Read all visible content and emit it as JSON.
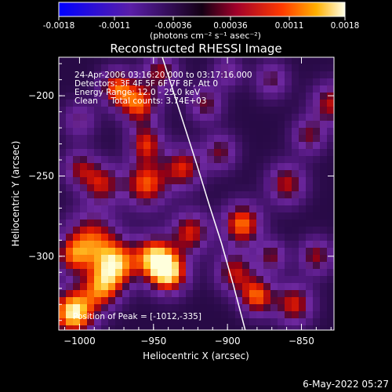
{
  "colorbar": {
    "tick_labels": [
      "-0.0018",
      "-0.0011",
      "-0.00036",
      "0.00036",
      "0.0011",
      "0.0018"
    ],
    "unit_label": "(photons cm⁻² s⁻¹ asec⁻²)",
    "range": [
      -0.0018,
      0.0018
    ]
  },
  "header": {
    "line1": "24-Apr-2006 03:16:20.000 to 03:17:16.000",
    "line2": "Detectors: 3F 4F 5F 6F 7F 8F, Att 0",
    "line3": "Energy Range: 12.0 - 25.0 keV",
    "line4": "Clean     Total counts: 3.74E+03"
  },
  "footer": {
    "peak_text": "Position of Peak = [-1012,-335]",
    "date_stamp": "6-May-2022 05:27"
  },
  "chart_data": {
    "type": "heatmap",
    "title": "Reconstructed RHESSI Image",
    "xlabel": "Heliocentric X (arcsec)",
    "ylabel": "Heliocentric Y (arcsec)",
    "xlim": [
      -1014,
      -828
    ],
    "ylim": [
      -346,
      -176
    ],
    "xticks": [
      -1000,
      -950,
      -900,
      -850
    ],
    "yticks": [
      -200,
      -250,
      -300
    ],
    "xtick_labels": [
      "−1000",
      "−950",
      "−900",
      "−850"
    ],
    "ytick_labels": [
      "−200",
      "−250",
      "−300"
    ],
    "limb_curve": {
      "x": [
        -944,
        -936,
        -928,
        -920,
        -912,
        -904,
        -896,
        -888
      ],
      "y": [
        -176,
        -199,
        -222,
        -245,
        -269,
        -292,
        -318,
        -346
      ]
    },
    "peak": {
      "x": -1012,
      "y": -335
    },
    "blobs": [
      {
        "x": -1004,
        "y": -335,
        "s": 10,
        "a": 1.0
      },
      {
        "x": -985,
        "y": -320,
        "s": 9,
        "a": 0.65
      },
      {
        "x": -940,
        "y": -310,
        "s": 9,
        "a": 0.95
      },
      {
        "x": -975,
        "y": -305,
        "s": 10,
        "a": 0.8
      },
      {
        "x": -950,
        "y": -300,
        "s": 9,
        "a": 0.75
      },
      {
        "x": -992,
        "y": -290,
        "s": 12,
        "a": 0.65
      },
      {
        "x": -925,
        "y": -285,
        "s": 9,
        "a": 0.6
      },
      {
        "x": -890,
        "y": -280,
        "s": 9,
        "a": 0.75
      },
      {
        "x": -895,
        "y": -310,
        "s": 9,
        "a": 0.55
      },
      {
        "x": -880,
        "y": -325,
        "s": 8,
        "a": 0.7
      },
      {
        "x": -855,
        "y": -330,
        "s": 9,
        "a": 0.6
      },
      {
        "x": -930,
        "y": -245,
        "s": 9,
        "a": 0.6
      },
      {
        "x": -955,
        "y": -255,
        "s": 10,
        "a": 0.7
      },
      {
        "x": -985,
        "y": -255,
        "s": 9,
        "a": 0.55
      },
      {
        "x": -1000,
        "y": -245,
        "s": 8,
        "a": 0.45
      },
      {
        "x": -955,
        "y": -230,
        "s": 8,
        "a": 0.6
      },
      {
        "x": -960,
        "y": -205,
        "s": 9,
        "a": 0.7
      },
      {
        "x": -975,
        "y": -195,
        "s": 8,
        "a": 0.65
      },
      {
        "x": -945,
        "y": -185,
        "s": 8,
        "a": 0.5
      },
      {
        "x": -915,
        "y": -205,
        "s": 8,
        "a": 0.45
      },
      {
        "x": -905,
        "y": -235,
        "s": 8,
        "a": 0.45
      },
      {
        "x": -860,
        "y": -255,
        "s": 9,
        "a": 0.55
      },
      {
        "x": -845,
        "y": -225,
        "s": 8,
        "a": 0.45
      },
      {
        "x": -830,
        "y": -205,
        "s": 9,
        "a": 0.55
      },
      {
        "x": -840,
        "y": -300,
        "s": 8,
        "a": 0.5
      },
      {
        "x": -870,
        "y": -300,
        "s": 7,
        "a": 0.45
      },
      {
        "x": -1000,
        "y": -215,
        "s": 8,
        "a": 0.35
      },
      {
        "x": -1005,
        "y": -300,
        "s": 8,
        "a": 0.5
      },
      {
        "x": -900,
        "y": -185,
        "s": 7,
        "a": 0.35
      },
      {
        "x": -870,
        "y": -190,
        "s": 8,
        "a": 0.4
      }
    ]
  }
}
